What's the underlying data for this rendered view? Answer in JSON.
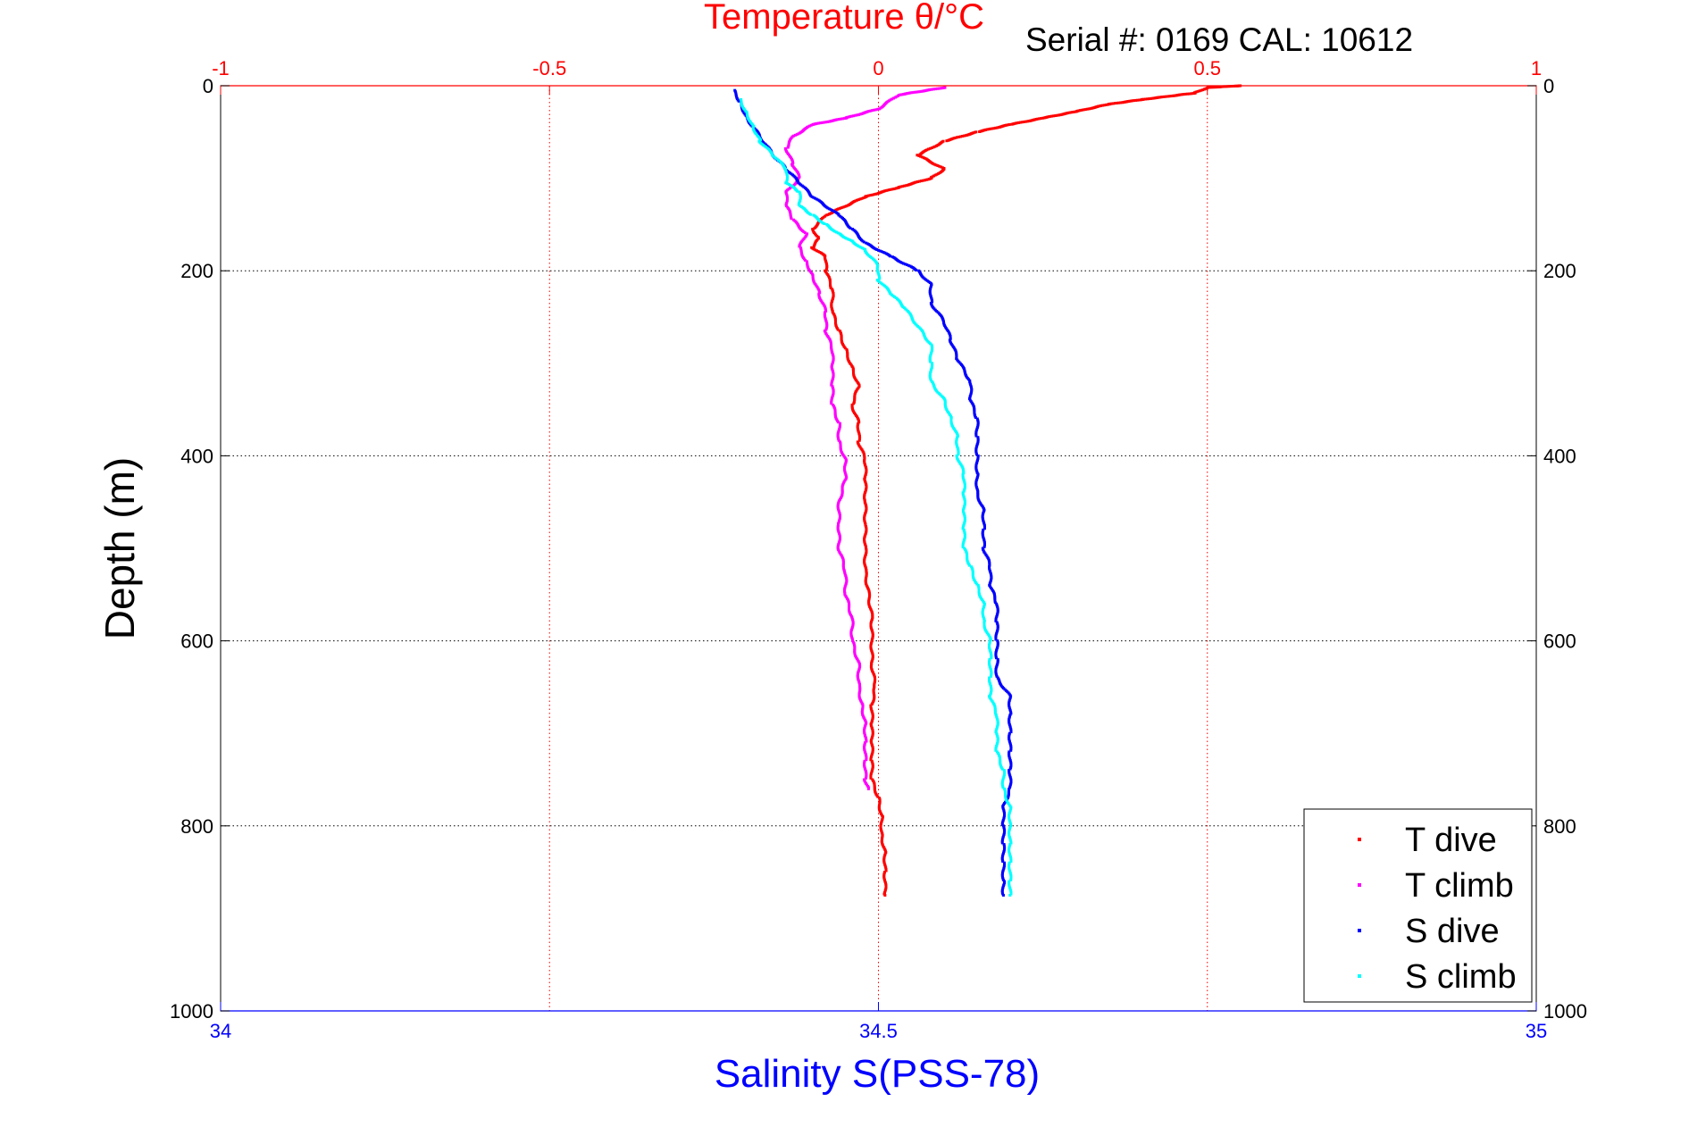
{
  "chart_data": {
    "type": "scatter",
    "title": "Temperature θ/°C",
    "subtitle": "Serial #: 0169 CAL: 10612",
    "ylabel": "Depth (m)",
    "xlabel": "Salinity S(PSS-78)",
    "ylim": [
      0,
      1000
    ],
    "y_reversed": true,
    "temperature_axis": {
      "range": [
        -1,
        1
      ],
      "ticks": [
        -1,
        -0.5,
        0,
        0.5,
        1
      ],
      "position": "top",
      "grid": true
    },
    "salinity_axis": {
      "range": [
        34,
        35
      ],
      "ticks": [
        34,
        34.5,
        35
      ],
      "position": "bottom"
    },
    "depth_ticks": [
      0,
      200,
      400,
      600,
      800,
      1000
    ],
    "grid": true,
    "legend": "bottom-right",
    "colors": {
      "temperature_axis": "#ff0000",
      "salinity_axis": "#0000ff",
      "depth_grid": "#000000"
    },
    "series": [
      {
        "name": "T dive",
        "axis": "temperature",
        "color": "#ff0000",
        "points": [
          [
            0.55,
            0
          ],
          [
            0.5,
            2
          ],
          [
            0.48,
            8
          ],
          [
            0.4,
            15
          ],
          [
            0.35,
            20
          ],
          [
            0.3,
            28
          ],
          [
            0.25,
            35
          ],
          [
            0.2,
            42
          ],
          [
            0.15,
            50
          ],
          [
            0.1,
            60
          ],
          [
            0.06,
            75
          ],
          [
            0.1,
            90
          ],
          [
            0.08,
            100
          ],
          [
            0.03,
            110
          ],
          [
            -0.02,
            120
          ],
          [
            -0.05,
            130
          ],
          [
            -0.08,
            140
          ],
          [
            -0.1,
            155
          ],
          [
            -0.09,
            165
          ],
          [
            -0.1,
            175
          ],
          [
            -0.08,
            185
          ],
          [
            -0.08,
            200
          ],
          [
            -0.07,
            220
          ],
          [
            -0.07,
            245
          ],
          [
            -0.06,
            265
          ],
          [
            -0.05,
            285
          ],
          [
            -0.04,
            305
          ],
          [
            -0.03,
            325
          ],
          [
            -0.04,
            345
          ],
          [
            -0.03,
            365
          ],
          [
            -0.03,
            385
          ],
          [
            -0.02,
            405
          ],
          [
            -0.02,
            425
          ],
          [
            -0.02,
            450
          ],
          [
            -0.02,
            475
          ],
          [
            -0.02,
            500
          ],
          [
            -0.02,
            525
          ],
          [
            -0.015,
            550
          ],
          [
            -0.01,
            575
          ],
          [
            -0.01,
            600
          ],
          [
            -0.01,
            625
          ],
          [
            -0.005,
            650
          ],
          [
            -0.01,
            670
          ],
          [
            -0.01,
            690
          ],
          [
            -0.01,
            710
          ],
          [
            -0.01,
            730
          ],
          [
            -0.01,
            750
          ],
          [
            0,
            770
          ],
          [
            0.005,
            790
          ],
          [
            0.005,
            810
          ],
          [
            0.01,
            830
          ],
          [
            0.01,
            850
          ],
          [
            0.01,
            875
          ]
        ]
      },
      {
        "name": "T climb",
        "axis": "temperature",
        "color": "#ff00ff",
        "points": [
          [
            0.1,
            2
          ],
          [
            0.03,
            10
          ],
          [
            0,
            25
          ],
          [
            -0.05,
            35
          ],
          [
            -0.1,
            42
          ],
          [
            -0.13,
            55
          ],
          [
            -0.14,
            68
          ],
          [
            -0.13,
            85
          ],
          [
            -0.12,
            100
          ],
          [
            -0.14,
            115
          ],
          [
            -0.14,
            130
          ],
          [
            -0.13,
            145
          ],
          [
            -0.11,
            160
          ],
          [
            -0.12,
            175
          ],
          [
            -0.11,
            190
          ],
          [
            -0.1,
            205
          ],
          [
            -0.09,
            225
          ],
          [
            -0.08,
            245
          ],
          [
            -0.08,
            265
          ],
          [
            -0.07,
            285
          ],
          [
            -0.07,
            305
          ],
          [
            -0.07,
            325
          ],
          [
            -0.07,
            345
          ],
          [
            -0.06,
            365
          ],
          [
            -0.06,
            385
          ],
          [
            -0.05,
            405
          ],
          [
            -0.05,
            425
          ],
          [
            -0.06,
            450
          ],
          [
            -0.06,
            475
          ],
          [
            -0.06,
            500
          ],
          [
            -0.05,
            525
          ],
          [
            -0.05,
            550
          ],
          [
            -0.04,
            575
          ],
          [
            -0.04,
            600
          ],
          [
            -0.03,
            625
          ],
          [
            -0.03,
            650
          ],
          [
            -0.025,
            670
          ],
          [
            -0.02,
            690
          ],
          [
            -0.02,
            710
          ],
          [
            -0.02,
            730
          ],
          [
            -0.02,
            750
          ],
          [
            -0.015,
            760
          ]
        ]
      },
      {
        "name": "S dive",
        "axis": "salinity",
        "color": "#0000ff",
        "points": [
          [
            34.39,
            5
          ],
          [
            34.395,
            18
          ],
          [
            34.4,
            35
          ],
          [
            34.41,
            55
          ],
          [
            34.42,
            75
          ],
          [
            34.43,
            90
          ],
          [
            34.44,
            105
          ],
          [
            34.45,
            120
          ],
          [
            34.47,
            140
          ],
          [
            34.48,
            155
          ],
          [
            34.49,
            170
          ],
          [
            34.51,
            185
          ],
          [
            34.53,
            200
          ],
          [
            34.54,
            215
          ],
          [
            34.54,
            235
          ],
          [
            34.55,
            255
          ],
          [
            34.555,
            275
          ],
          [
            34.56,
            295
          ],
          [
            34.57,
            320
          ],
          [
            34.57,
            340
          ],
          [
            34.575,
            360
          ],
          [
            34.575,
            380
          ],
          [
            34.575,
            400
          ],
          [
            34.575,
            420
          ],
          [
            34.575,
            440
          ],
          [
            34.58,
            460
          ],
          [
            34.58,
            480
          ],
          [
            34.58,
            500
          ],
          [
            34.585,
            520
          ],
          [
            34.585,
            540
          ],
          [
            34.59,
            560
          ],
          [
            34.59,
            580
          ],
          [
            34.59,
            600
          ],
          [
            34.59,
            620
          ],
          [
            34.59,
            640
          ],
          [
            34.6,
            660
          ],
          [
            34.6,
            680
          ],
          [
            34.6,
            700
          ],
          [
            34.6,
            720
          ],
          [
            34.6,
            740
          ],
          [
            34.6,
            760
          ],
          [
            34.595,
            780
          ],
          [
            34.595,
            800
          ],
          [
            34.595,
            820
          ],
          [
            34.595,
            840
          ],
          [
            34.595,
            860
          ],
          [
            34.595,
            875
          ]
        ]
      },
      {
        "name": "S climb",
        "axis": "salinity",
        "color": "#00ffff",
        "points": [
          [
            34.395,
            15
          ],
          [
            34.4,
            30
          ],
          [
            34.405,
            45
          ],
          [
            34.41,
            60
          ],
          [
            34.42,
            75
          ],
          [
            34.43,
            90
          ],
          [
            34.43,
            105
          ],
          [
            34.44,
            115
          ],
          [
            34.44,
            130
          ],
          [
            34.45,
            140
          ],
          [
            34.46,
            150
          ],
          [
            34.47,
            160
          ],
          [
            34.48,
            168
          ],
          [
            34.49,
            178
          ],
          [
            34.5,
            195
          ],
          [
            34.5,
            210
          ],
          [
            34.51,
            225
          ],
          [
            34.52,
            240
          ],
          [
            34.53,
            260
          ],
          [
            34.54,
            280
          ],
          [
            34.54,
            300
          ],
          [
            34.54,
            320
          ],
          [
            34.55,
            340
          ],
          [
            34.555,
            360
          ],
          [
            34.56,
            380
          ],
          [
            34.56,
            400
          ],
          [
            34.565,
            420
          ],
          [
            34.565,
            440
          ],
          [
            34.565,
            460
          ],
          [
            34.565,
            480
          ],
          [
            34.565,
            500
          ],
          [
            34.57,
            520
          ],
          [
            34.575,
            540
          ],
          [
            34.58,
            560
          ],
          [
            34.58,
            580
          ],
          [
            34.585,
            600
          ],
          [
            34.585,
            620
          ],
          [
            34.585,
            640
          ],
          [
            34.585,
            660
          ],
          [
            34.59,
            680
          ],
          [
            34.59,
            700
          ],
          [
            34.59,
            720
          ],
          [
            34.595,
            740
          ],
          [
            34.595,
            760
          ],
          [
            34.6,
            780
          ],
          [
            34.6,
            800
          ],
          [
            34.6,
            820
          ],
          [
            34.6,
            840
          ],
          [
            34.6,
            860
          ],
          [
            34.6,
            875
          ]
        ]
      }
    ]
  }
}
